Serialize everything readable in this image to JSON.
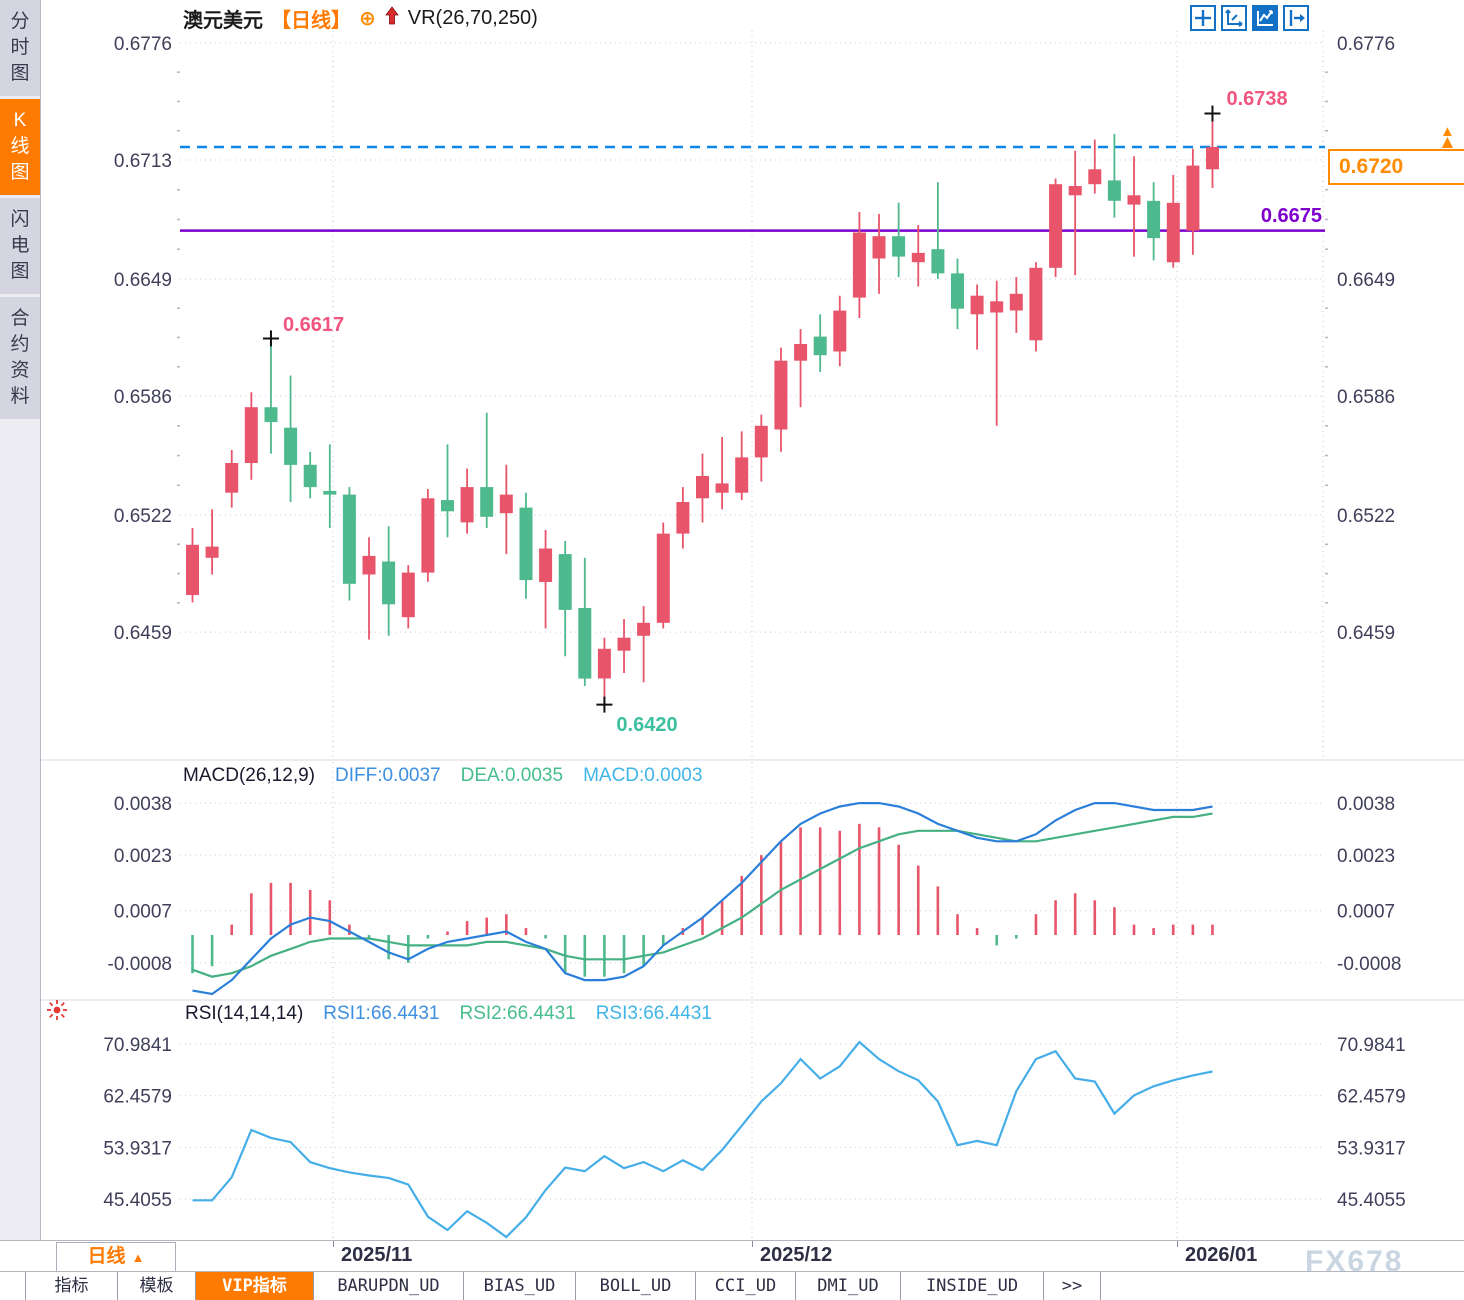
{
  "title": {
    "symbol": "澳元美元",
    "interval_tag": "【日线】",
    "plus_icon": "⊕",
    "overlay": "VR(26,70,250)"
  },
  "sidebar": {
    "items": [
      {
        "label": "分时图",
        "active": false
      },
      {
        "label": "K线图",
        "active": true
      },
      {
        "label": "闪电图",
        "active": false
      },
      {
        "label": "合约资料",
        "active": false
      }
    ]
  },
  "toolbar": {
    "icons": [
      {
        "name": "move-icon",
        "active": false
      },
      {
        "name": "axis-scale-icon",
        "active": false
      },
      {
        "name": "chart-style-icon",
        "active": true
      },
      {
        "name": "collapse-panel-icon",
        "active": false
      }
    ]
  },
  "interval_selector": {
    "label": "日线",
    "caret": "▲"
  },
  "tabs": {
    "items": [
      {
        "label": "指标",
        "active": false
      },
      {
        "label": "模板",
        "active": false
      },
      {
        "label": "VIP指标",
        "active": true
      },
      {
        "label": "BARUPDN_UD",
        "active": false
      },
      {
        "label": "BIAS_UD",
        "active": false
      },
      {
        "label": "BOLL_UD",
        "active": false
      },
      {
        "label": "CCI_UD",
        "active": false
      },
      {
        "label": "DMI_UD",
        "active": false
      },
      {
        "label": "INSIDE_UD",
        "active": false
      },
      {
        "label": ">>",
        "active": false
      }
    ]
  },
  "watermark": "FX678",
  "annotations": {
    "last_high_label": "0.6738",
    "swing_high_label": "0.6617",
    "swing_low_label": "0.6420",
    "support_label": "0.6675",
    "current_price_label": "0.6720",
    "price_tag_arrow": "▲"
  },
  "headers": {
    "macd": {
      "name": "MACD(26,12,9)",
      "diff": "DIFF:0.0037",
      "dea": "DEA:0.0035",
      "macd": "MACD:0.0003"
    },
    "rsi": {
      "name": "RSI(14,14,14)",
      "rsi1": "RSI1:66.4431",
      "rsi2": "RSI2:66.4431",
      "rsi3": "RSI3:66.4431"
    }
  },
  "colors": {
    "up_candle": "#e8546a",
    "down_candle": "#4db98c",
    "diff_line": "#2b7fd9",
    "dea_line": "#45b083",
    "rsi_line": "#45aee8",
    "current_dashed_line": "#0d86e8",
    "support_line": "#7d00cc",
    "accent_orange": "#ff7a00",
    "pink_label": "#f2557f",
    "teal_label": "#3dbfa0",
    "axis_text": "#3f3f5a"
  },
  "chart_data": {
    "type": "candlestick",
    "title": "澳元美元 日线 (AUD/USD daily) with MACD(26,12,9) and RSI(14,14,14)",
    "x_labels": [
      "2025/11",
      "2025/12",
      "2026/01"
    ],
    "price_ticks": [
      "0.6776",
      "0.6713",
      "0.6649",
      "0.6586",
      "0.6522",
      "0.6459"
    ],
    "price_tick_values": [
      0.6776,
      0.6713,
      0.6649,
      0.6586,
      0.6522,
      0.6459
    ],
    "support_level": 0.6675,
    "current_price": 0.672,
    "last_high": 0.6738,
    "swing_high": 0.6617,
    "swing_low": 0.642,
    "candles_ohlc": [
      [
        0.6479,
        0.6515,
        0.6475,
        0.6506
      ],
      [
        0.6499,
        0.6525,
        0.649,
        0.6505
      ],
      [
        0.6534,
        0.6557,
        0.6526,
        0.655
      ],
      [
        0.655,
        0.6588,
        0.6541,
        0.658
      ],
      [
        0.658,
        0.6617,
        0.6555,
        0.6572
      ],
      [
        0.6569,
        0.6597,
        0.6529,
        0.6549
      ],
      [
        0.6549,
        0.6556,
        0.6531,
        0.6537
      ],
      [
        0.6535,
        0.656,
        0.6515,
        0.6533
      ],
      [
        0.6533,
        0.6537,
        0.6476,
        0.6485
      ],
      [
        0.649,
        0.651,
        0.6455,
        0.65
      ],
      [
        0.6497,
        0.6516,
        0.6457,
        0.6474
      ],
      [
        0.6467,
        0.6495,
        0.6461,
        0.6491
      ],
      [
        0.6491,
        0.6536,
        0.6486,
        0.6531
      ],
      [
        0.653,
        0.656,
        0.651,
        0.6524
      ],
      [
        0.6518,
        0.6547,
        0.6512,
        0.6537
      ],
      [
        0.6537,
        0.6577,
        0.6515,
        0.6521
      ],
      [
        0.6523,
        0.6549,
        0.6501,
        0.6533
      ],
      [
        0.6526,
        0.6534,
        0.6477,
        0.6487
      ],
      [
        0.6486,
        0.6514,
        0.6461,
        0.6504
      ],
      [
        0.6501,
        0.6508,
        0.6446,
        0.6471
      ],
      [
        0.6472,
        0.6499,
        0.643,
        0.6434
      ],
      [
        0.6434,
        0.6456,
        0.642,
        0.645
      ],
      [
        0.6449,
        0.6466,
        0.6437,
        0.6456
      ],
      [
        0.6457,
        0.6473,
        0.6432,
        0.6464
      ],
      [
        0.6464,
        0.6518,
        0.6461,
        0.6512
      ],
      [
        0.6512,
        0.6537,
        0.6504,
        0.6529
      ],
      [
        0.6531,
        0.6555,
        0.6518,
        0.6543
      ],
      [
        0.6534,
        0.6564,
        0.6525,
        0.6539
      ],
      [
        0.6534,
        0.6567,
        0.653,
        0.6553
      ],
      [
        0.6553,
        0.6576,
        0.654,
        0.657
      ],
      [
        0.6568,
        0.6612,
        0.6556,
        0.6605
      ],
      [
        0.6605,
        0.6622,
        0.658,
        0.6614
      ],
      [
        0.6618,
        0.663,
        0.6599,
        0.6608
      ],
      [
        0.661,
        0.664,
        0.6602,
        0.6632
      ],
      [
        0.6639,
        0.6685,
        0.6628,
        0.6674
      ],
      [
        0.666,
        0.6684,
        0.6641,
        0.6672
      ],
      [
        0.6672,
        0.669,
        0.665,
        0.6661
      ],
      [
        0.6658,
        0.6678,
        0.6645,
        0.6663
      ],
      [
        0.6665,
        0.6701,
        0.6649,
        0.6652
      ],
      [
        0.6652,
        0.666,
        0.6622,
        0.6633
      ],
      [
        0.663,
        0.6646,
        0.6611,
        0.664
      ],
      [
        0.6631,
        0.6648,
        0.657,
        0.6637
      ],
      [
        0.6632,
        0.665,
        0.662,
        0.6641
      ],
      [
        0.6616,
        0.6658,
        0.661,
        0.6655
      ],
      [
        0.6655,
        0.6703,
        0.665,
        0.67
      ],
      [
        0.6694,
        0.6718,
        0.6651,
        0.6699
      ],
      [
        0.67,
        0.6724,
        0.6695,
        0.6708
      ],
      [
        0.6702,
        0.6727,
        0.6682,
        0.6691
      ],
      [
        0.6689,
        0.6715,
        0.6661,
        0.6694
      ],
      [
        0.6691,
        0.6701,
        0.6659,
        0.6671
      ],
      [
        0.6658,
        0.6705,
        0.6655,
        0.669
      ],
      [
        0.6675,
        0.6719,
        0.6662,
        0.671
      ],
      [
        0.6708,
        0.6738,
        0.6698,
        0.672
      ]
    ],
    "macd": {
      "ticks": [
        "0.0038",
        "0.0023",
        "0.0007",
        "-0.0008"
      ],
      "tick_values": [
        0.0038,
        0.0023,
        0.0007,
        -0.0008
      ],
      "diff": [
        -0.0016,
        -0.0017,
        -0.0013,
        -0.0007,
        -0.0001,
        0.0003,
        0.0005,
        0.0004,
        0.0001,
        -0.0002,
        -0.0005,
        -0.0007,
        -0.0004,
        -0.0002,
        -0.0001,
        0.0,
        0.0001,
        -0.0002,
        -0.0004,
        -0.0011,
        -0.0013,
        -0.0013,
        -0.0012,
        -0.0009,
        -0.0003,
        0.0001,
        0.0005,
        0.001,
        0.0015,
        0.0021,
        0.0027,
        0.0032,
        0.0035,
        0.0037,
        0.0038,
        0.0038,
        0.0037,
        0.0035,
        0.0032,
        0.003,
        0.0028,
        0.0027,
        0.0027,
        0.0029,
        0.0033,
        0.0036,
        0.0038,
        0.0038,
        0.0037,
        0.0036,
        0.0036,
        0.0036,
        0.0037
      ],
      "dea": [
        -0.001,
        -0.0012,
        -0.0011,
        -0.0009,
        -0.0006,
        -0.0004,
        -0.0002,
        -0.0001,
        -0.0001,
        -0.0001,
        -0.0002,
        -0.0003,
        -0.0003,
        -0.0003,
        -0.0003,
        -0.0002,
        -0.0002,
        -0.0003,
        -0.0004,
        -0.0006,
        -0.0007,
        -0.0007,
        -0.0007,
        -0.0006,
        -0.0005,
        -0.0003,
        -0.0001,
        0.0002,
        0.0005,
        0.0009,
        0.0013,
        0.0016,
        0.0019,
        0.0022,
        0.0025,
        0.0027,
        0.0029,
        0.003,
        0.003,
        0.003,
        0.0029,
        0.0028,
        0.0027,
        0.0027,
        0.0028,
        0.0029,
        0.003,
        0.0031,
        0.0032,
        0.0033,
        0.0034,
        0.0034,
        0.0035
      ],
      "hist": [
        -0.0011,
        -0.0009,
        0.0003,
        0.0012,
        0.0015,
        0.0015,
        0.0013,
        0.001,
        0.0003,
        -0.0001,
        -0.0007,
        -0.0008,
        -0.0001,
        0.0001,
        0.0004,
        0.0005,
        0.0006,
        0.0002,
        -0.0001,
        -0.0011,
        -0.0012,
        -0.0012,
        -0.0011,
        -0.0009,
        -0.0003,
        0.0002,
        0.0005,
        0.001,
        0.0017,
        0.0023,
        0.0027,
        0.0031,
        0.0031,
        0.003,
        0.0032,
        0.0031,
        0.0026,
        0.002,
        0.0014,
        0.0006,
        0.0002,
        -0.0003,
        -0.0001,
        0.0006,
        0.001,
        0.0012,
        0.001,
        0.0008,
        0.0003,
        0.0002,
        0.0003,
        0.0003,
        0.0003
      ]
    },
    "rsi": {
      "ticks": [
        "70.9841",
        "62.4579",
        "53.9317",
        "45.4055"
      ],
      "tick_values": [
        70.9841,
        62.4579,
        53.9317,
        45.4055
      ],
      "values": [
        45.2,
        45.2,
        49.0,
        56.8,
        55.5,
        54.8,
        51.5,
        50.5,
        49.8,
        49.3,
        48.9,
        47.8,
        42.5,
        40.3,
        43.4,
        41.5,
        38.8,
        42.4,
        46.9,
        50.6,
        50.0,
        52.5,
        50.5,
        51.5,
        50.0,
        51.8,
        50.2,
        53.5,
        57.5,
        61.5,
        64.5,
        68.5,
        65.3,
        67.3,
        71.3,
        68.5,
        66.5,
        65.0,
        61.5,
        54.3,
        55.0,
        54.3,
        63.2,
        68.5,
        69.8,
        65.3,
        64.8,
        59.5,
        62.5,
        64.0,
        65.0,
        65.8,
        66.4431
      ]
    }
  }
}
